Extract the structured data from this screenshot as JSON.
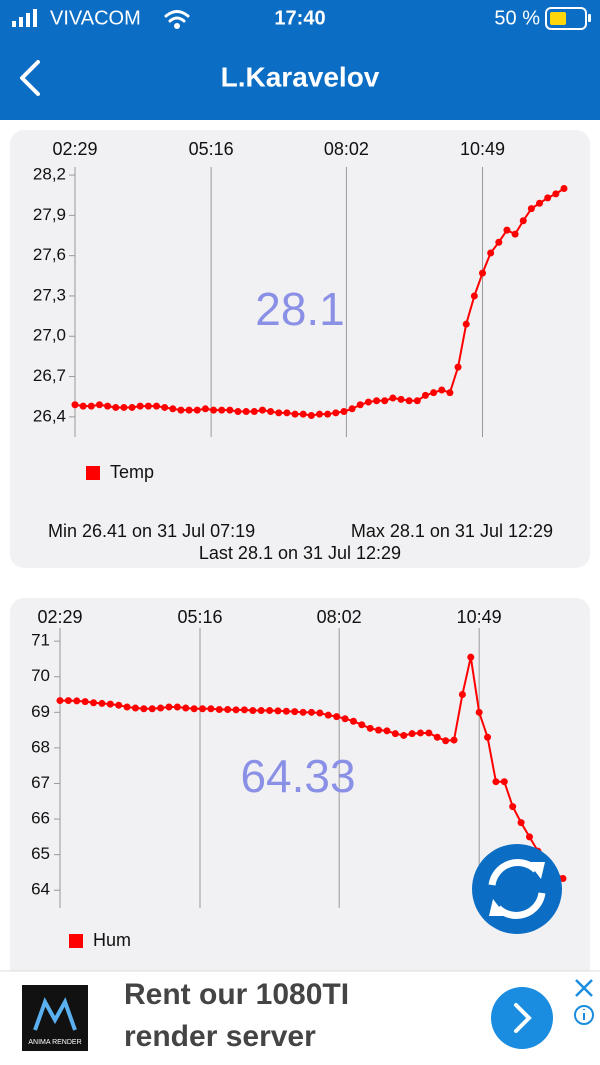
{
  "status_bar": {
    "carrier": "VIVACOM",
    "time": "17:40",
    "battery": "50 %"
  },
  "header": {
    "title": "L.Karavelov"
  },
  "chart_data": [
    {
      "type": "line",
      "x": [
        "02:29",
        "02:39",
        "02:49",
        "02:59",
        "03:09",
        "03:19",
        "03:29",
        "03:39",
        "03:49",
        "03:59",
        "04:09",
        "04:19",
        "04:29",
        "04:39",
        "04:49",
        "04:59",
        "05:09",
        "05:19",
        "05:29",
        "05:39",
        "05:49",
        "05:59",
        "06:09",
        "06:19",
        "06:29",
        "06:39",
        "06:49",
        "06:59",
        "07:09",
        "07:19",
        "07:29",
        "07:39",
        "07:49",
        "07:59",
        "08:09",
        "08:19",
        "08:29",
        "08:39",
        "08:49",
        "08:59",
        "09:09",
        "09:19",
        "09:29",
        "09:39",
        "09:49",
        "09:59",
        "10:09",
        "10:19",
        "10:29",
        "10:39",
        "10:49",
        "10:59",
        "11:09",
        "11:19",
        "11:29",
        "11:39",
        "11:49",
        "11:59",
        "12:09",
        "12:19",
        "12:29"
      ],
      "xlim": [
        "02:29",
        "12:29"
      ],
      "xticks": [
        "02:29",
        "05:16",
        "08:02",
        "10:49"
      ],
      "ylim": [
        26.25,
        28.26
      ],
      "yticks": [
        {
          "value": 26.4,
          "label": "26,4"
        },
        {
          "value": 26.7,
          "label": "26,7"
        },
        {
          "value": 27.0,
          "label": "27,0"
        },
        {
          "value": 27.3,
          "label": "27,3"
        },
        {
          "value": 27.6,
          "label": "27,6"
        },
        {
          "value": 27.9,
          "label": "27,9"
        },
        {
          "value": 28.2,
          "label": "28,2"
        }
      ],
      "series": [
        {
          "name": "Temp",
          "color": "#ff0000",
          "values": [
            26.49,
            26.48,
            26.48,
            26.49,
            26.48,
            26.47,
            26.47,
            26.47,
            26.48,
            26.48,
            26.48,
            26.47,
            26.46,
            26.45,
            26.45,
            26.45,
            26.46,
            26.45,
            26.45,
            26.45,
            26.44,
            26.44,
            26.44,
            26.45,
            26.44,
            26.43,
            26.43,
            26.42,
            26.42,
            26.41,
            26.42,
            26.42,
            26.43,
            26.44,
            26.46,
            26.49,
            26.51,
            26.52,
            26.52,
            26.54,
            26.53,
            26.52,
            26.52,
            26.56,
            26.58,
            26.6,
            26.58,
            26.77,
            27.09,
            27.3,
            27.47,
            27.62,
            27.7,
            27.79,
            27.76,
            27.86,
            27.95,
            27.99,
            28.03,
            28.06,
            28.1
          ]
        }
      ],
      "current_value": 28.1,
      "current_value_color": "#8a90e6",
      "stats": [
        "Min 26.41 on 31 Jul 07:19",
        "Max 28.1 on 31 Jul 12:29",
        "Last 28.1 on 31 Jul 12:29"
      ]
    },
    {
      "type": "line",
      "x": [
        "02:29",
        "02:39",
        "02:49",
        "02:59",
        "03:09",
        "03:19",
        "03:29",
        "03:39",
        "03:49",
        "03:59",
        "04:09",
        "04:19",
        "04:29",
        "04:39",
        "04:49",
        "04:59",
        "05:09",
        "05:19",
        "05:29",
        "05:39",
        "05:49",
        "05:59",
        "06:09",
        "06:19",
        "06:29",
        "06:39",
        "06:49",
        "06:59",
        "07:09",
        "07:19",
        "07:29",
        "07:39",
        "07:49",
        "07:59",
        "08:09",
        "08:19",
        "08:29",
        "08:39",
        "08:49",
        "08:59",
        "09:09",
        "09:19",
        "09:29",
        "09:39",
        "09:49",
        "09:59",
        "10:09",
        "10:19",
        "10:29",
        "10:39",
        "10:49",
        "10:59",
        "11:09",
        "11:19",
        "11:29",
        "11:39",
        "11:49",
        "11:59",
        "12:09",
        "12:19",
        "12:29"
      ],
      "xlim": [
        "02:29",
        "12:29"
      ],
      "xticks": [
        "02:29",
        "05:16",
        "08:02",
        "10:49"
      ],
      "ylim": [
        63.5,
        71.37
      ],
      "yticks": [
        64,
        65,
        66,
        67,
        68,
        69,
        70,
        71
      ],
      "series": [
        {
          "name": "Hum",
          "color": "#ff0000",
          "values": [
            69.33,
            69.33,
            69.32,
            69.3,
            69.27,
            69.25,
            69.23,
            69.2,
            69.15,
            69.12,
            69.1,
            69.1,
            69.12,
            69.15,
            69.15,
            69.12,
            69.1,
            69.1,
            69.1,
            69.08,
            69.08,
            69.07,
            69.07,
            69.05,
            69.05,
            69.05,
            69.04,
            69.03,
            69.02,
            69.0,
            69.0,
            68.98,
            68.92,
            68.88,
            68.82,
            68.75,
            68.65,
            68.55,
            68.5,
            68.48,
            68.4,
            68.35,
            68.4,
            68.42,
            68.42,
            68.3,
            68.2,
            68.22,
            69.5,
            70.55,
            69.0,
            68.3,
            67.05,
            67.05,
            66.35,
            65.9,
            65.5,
            65.1,
            64.8,
            64.5,
            64.33
          ]
        }
      ],
      "current_value": 64.33,
      "current_value_color": "#8a90e6"
    }
  ],
  "ad": {
    "brand": "ANIMA RENDER",
    "lines": [
      "Rent our 1080TI",
      "render server"
    ]
  }
}
